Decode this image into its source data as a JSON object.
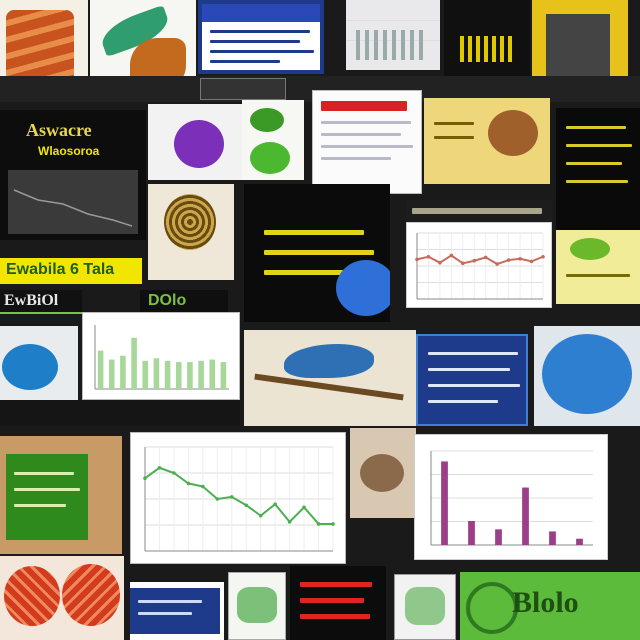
{
  "collage": {
    "title_top_left": "Aswacre",
    "subtitle_top_left": "Wlaosoroa",
    "banner_yellow": "Ewabila 6 Tala",
    "banner_dark": "EwBiOl",
    "banner_dark_small": "DOlo",
    "footer_green": "Blolo",
    "colors": {
      "background": "#1a1a1a",
      "slide_dark": "#0d0d0d",
      "slide_blue": "#1e3a8a",
      "slide_green": "#2f8a1e",
      "accent_yellow": "#f2e600",
      "chart_green": "#4caf50",
      "chart_purple": "#9c3f8a",
      "chart_blue": "#2f6fb3"
    },
    "icons": [
      "leaf-icon",
      "brain-icon",
      "bird-icon",
      "feather-icon"
    ]
  },
  "chart_data": [
    {
      "type": "line",
      "x": [
        1,
        2,
        3,
        4,
        5,
        6,
        7,
        8,
        9,
        10,
        11,
        12,
        13,
        14
      ],
      "values": [
        7,
        8,
        7.5,
        6.5,
        6.2,
        5,
        5.2,
        4.4,
        3.4,
        4.5,
        2.8,
        4.2,
        2.6,
        2.6
      ],
      "title": "",
      "xlabel": "",
      "ylabel": "",
      "ylim": [
        0,
        10
      ],
      "grid": true
    },
    {
      "type": "bar",
      "categories": [
        "",
        "",
        "",
        "",
        "",
        ""
      ],
      "values": [
        8,
        2.3,
        1.5,
        5.5,
        1.3,
        0.6
      ],
      "title": "",
      "xlabel": "",
      "ylabel": "",
      "ylim": [
        0,
        9
      ],
      "grid": true
    },
    {
      "type": "bar",
      "categories": [
        "",
        "",
        "",
        "",
        "",
        "",
        "",
        "",
        "",
        "",
        "",
        ""
      ],
      "values": [
        3,
        2.3,
        2.6,
        4,
        2.2,
        2.4,
        2.2,
        2.1,
        2.1,
        2.2,
        2.3,
        2.1
      ],
      "title": "",
      "xlabel": "",
      "ylabel": "",
      "ylim": [
        0,
        5
      ],
      "grid": false
    },
    {
      "type": "line",
      "x": [
        1,
        2,
        3,
        4,
        5,
        6,
        7,
        8,
        9,
        10,
        11,
        12
      ],
      "values": [
        6,
        6.4,
        5.5,
        6.6,
        5.4,
        5.8,
        6.3,
        5.3,
        5.9,
        6.1,
        5.7,
        6.4
      ],
      "title": "",
      "xlabel": "",
      "ylabel": "",
      "ylim": [
        0,
        10
      ],
      "grid": true
    }
  ]
}
